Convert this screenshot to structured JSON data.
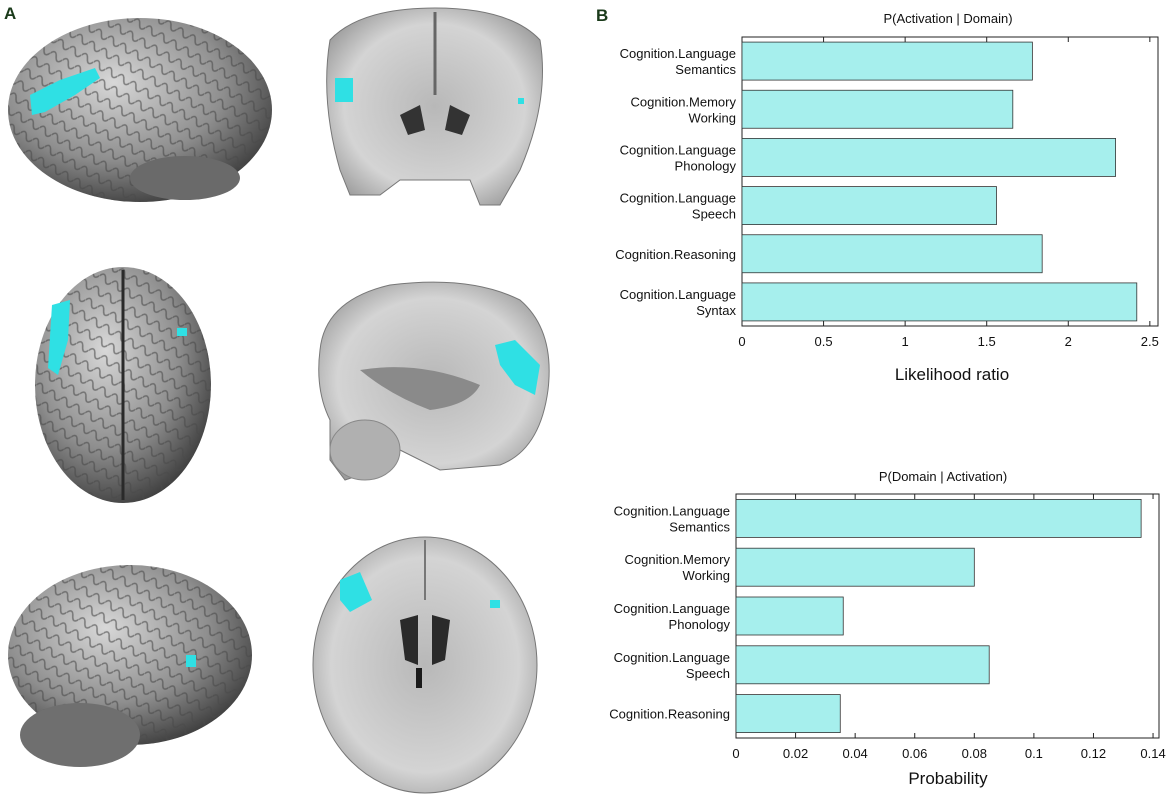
{
  "panels": {
    "a": "A",
    "b": "B"
  },
  "colors": {
    "bar_fill": "#a6efed",
    "bar_stroke": "#333333",
    "activation": "#2fe0e4"
  },
  "brain_views": [
    "lateral-left-render",
    "coronal-slice",
    "dorsal-render",
    "sagittal-slice",
    "oblique-left-render",
    "axial-slice"
  ],
  "chart_data": [
    {
      "type": "bar",
      "orientation": "horizontal",
      "title": "P(Activation | Domain)",
      "xlabel": "Likelihood ratio",
      "categories": [
        [
          "Cognition.Language",
          "Semantics"
        ],
        [
          "Cognition.Memory",
          "Working"
        ],
        [
          "Cognition.Language",
          "Phonology"
        ],
        [
          "Cognition.Language",
          "Speech"
        ],
        [
          "Cognition.Reasoning"
        ],
        [
          "Cognition.Language",
          "Syntax"
        ]
      ],
      "values": [
        1.78,
        1.66,
        2.29,
        1.56,
        1.84,
        2.42
      ],
      "xlim": [
        0,
        2.55
      ],
      "xticks": [
        0,
        0.5,
        1,
        1.5,
        2,
        2.5
      ],
      "xtick_labels": [
        "0",
        "0.5",
        "1",
        "1.5",
        "2",
        "2.5"
      ],
      "grid": false
    },
    {
      "type": "bar",
      "orientation": "horizontal",
      "title": "P(Domain | Activation)",
      "xlabel": "Probability",
      "categories": [
        [
          "Cognition.Language",
          "Semantics"
        ],
        [
          "Cognition.Memory",
          "Working"
        ],
        [
          "Cognition.Language",
          "Phonology"
        ],
        [
          "Cognition.Language",
          "Speech"
        ],
        [
          "Cognition.Reasoning"
        ]
      ],
      "values": [
        0.136,
        0.08,
        0.036,
        0.085,
        0.035
      ],
      "xlim": [
        0,
        0.142
      ],
      "xticks": [
        0,
        0.02,
        0.04,
        0.06,
        0.08,
        0.1,
        0.12,
        0.14
      ],
      "xtick_labels": [
        "0",
        "0.02",
        "0.04",
        "0.06",
        "0.08",
        "0.1",
        "0.12",
        "0.14"
      ],
      "grid": false
    }
  ]
}
